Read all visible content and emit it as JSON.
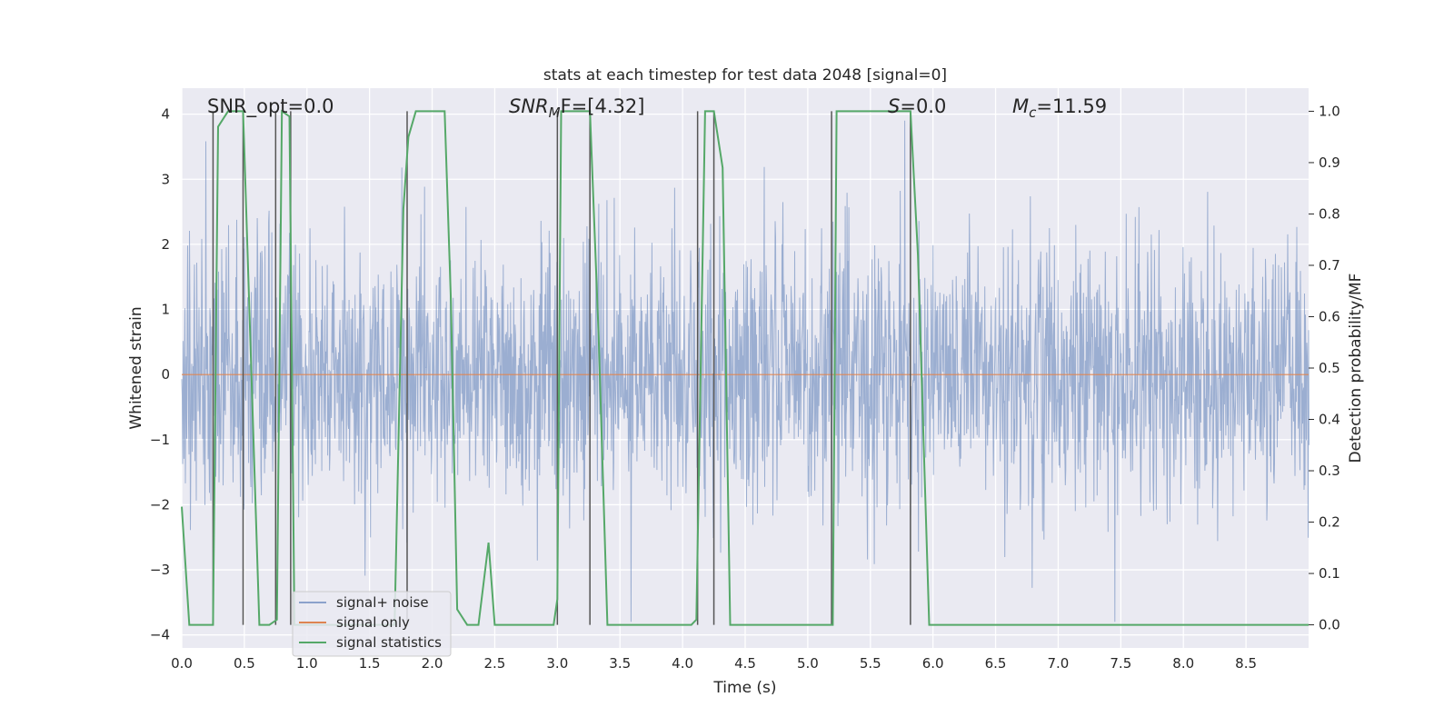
{
  "chart_data": {
    "type": "line",
    "title": "stats at each timestep for test data 2048 [signal=0]",
    "xlabel": "Time (s)",
    "ylabel": "Whitened strain",
    "y2label": "Detection probability/MF",
    "xlim": [
      0.0,
      9.0
    ],
    "ylim": [
      -4.2,
      4.4
    ],
    "y2lim": [
      -0.045,
      1.045
    ],
    "xticks": [
      "0.0",
      "0.5",
      "1.0",
      "1.5",
      "2.0",
      "2.5",
      "3.0",
      "3.5",
      "4.0",
      "4.5",
      "5.0",
      "5.5",
      "6.0",
      "6.5",
      "7.0",
      "7.5",
      "8.0",
      "8.5"
    ],
    "yticks": [
      "−4",
      "−3",
      "−2",
      "−1",
      "0",
      "1",
      "2",
      "3",
      "4"
    ],
    "y2ticks": [
      "0.0",
      "0.1",
      "0.2",
      "0.3",
      "0.4",
      "0.5",
      "0.6",
      "0.7",
      "0.8",
      "0.9",
      "1.0"
    ],
    "annotations": {
      "snr_opt": "SNR_opt=0.0",
      "snr_mf_main": "SNR",
      "snr_mf_sub": "M",
      "snr_mf_rest": "F=[4.32]",
      "s_label": "S",
      "s_value": "=0.0",
      "mc_main": "M",
      "mc_sub": "c",
      "mc_value": "=11.59"
    },
    "legend": {
      "position": "lower-left",
      "entries": [
        "signal+ noise",
        "signal only",
        "signal statistics"
      ]
    },
    "series": [
      {
        "name": "signal+ noise",
        "color": "#4c72b0",
        "description": "whitened noise, approx gaussian, sigma ~1, spikes to +/-3.5"
      },
      {
        "name": "signal only",
        "color": "#dd8452",
        "values_constant": 0.0
      },
      {
        "name": "signal statistics",
        "color": "#55a868",
        "axis": "right",
        "x": [
          0.0,
          0.06,
          0.12,
          0.25,
          0.29,
          0.37,
          0.42,
          0.49,
          0.62,
          0.7,
          0.76,
          0.8,
          0.86,
          0.9,
          0.95,
          1.0,
          1.7,
          1.77,
          1.81,
          1.87,
          2.1,
          2.15,
          2.2,
          2.28,
          2.37,
          2.45,
          2.5,
          2.97,
          3.0,
          3.03,
          3.26,
          3.33,
          3.4,
          3.56,
          3.64,
          4.07,
          4.11,
          4.18,
          4.25,
          4.32,
          4.38,
          4.45,
          5.2,
          5.23,
          5.3,
          5.82,
          5.88,
          5.97,
          6.05,
          6.6,
          7.0,
          9.0
        ],
        "values": [
          0.23,
          0.0,
          0.0,
          0.0,
          0.97,
          1.0,
          1.0,
          1.0,
          0.0,
          0.0,
          0.01,
          1.0,
          0.99,
          0.0,
          0.0,
          0.0,
          0.0,
          0.81,
          0.95,
          1.0,
          1.0,
          0.63,
          0.03,
          0.0,
          0.0,
          0.16,
          0.0,
          0.0,
          0.05,
          1.0,
          1.0,
          0.56,
          0.0,
          0.0,
          0.0,
          0.0,
          0.01,
          1.0,
          1.0,
          0.89,
          0.0,
          0.0,
          0.0,
          1.0,
          1.0,
          1.0,
          0.72,
          0.0,
          0.0,
          0.0,
          0.0,
          0.0
        ]
      }
    ],
    "vertical_lines_x": [
      0.25,
      0.49,
      0.75,
      0.87,
      1.8,
      3.0,
      3.26,
      4.12,
      4.25,
      5.19,
      5.82
    ]
  }
}
